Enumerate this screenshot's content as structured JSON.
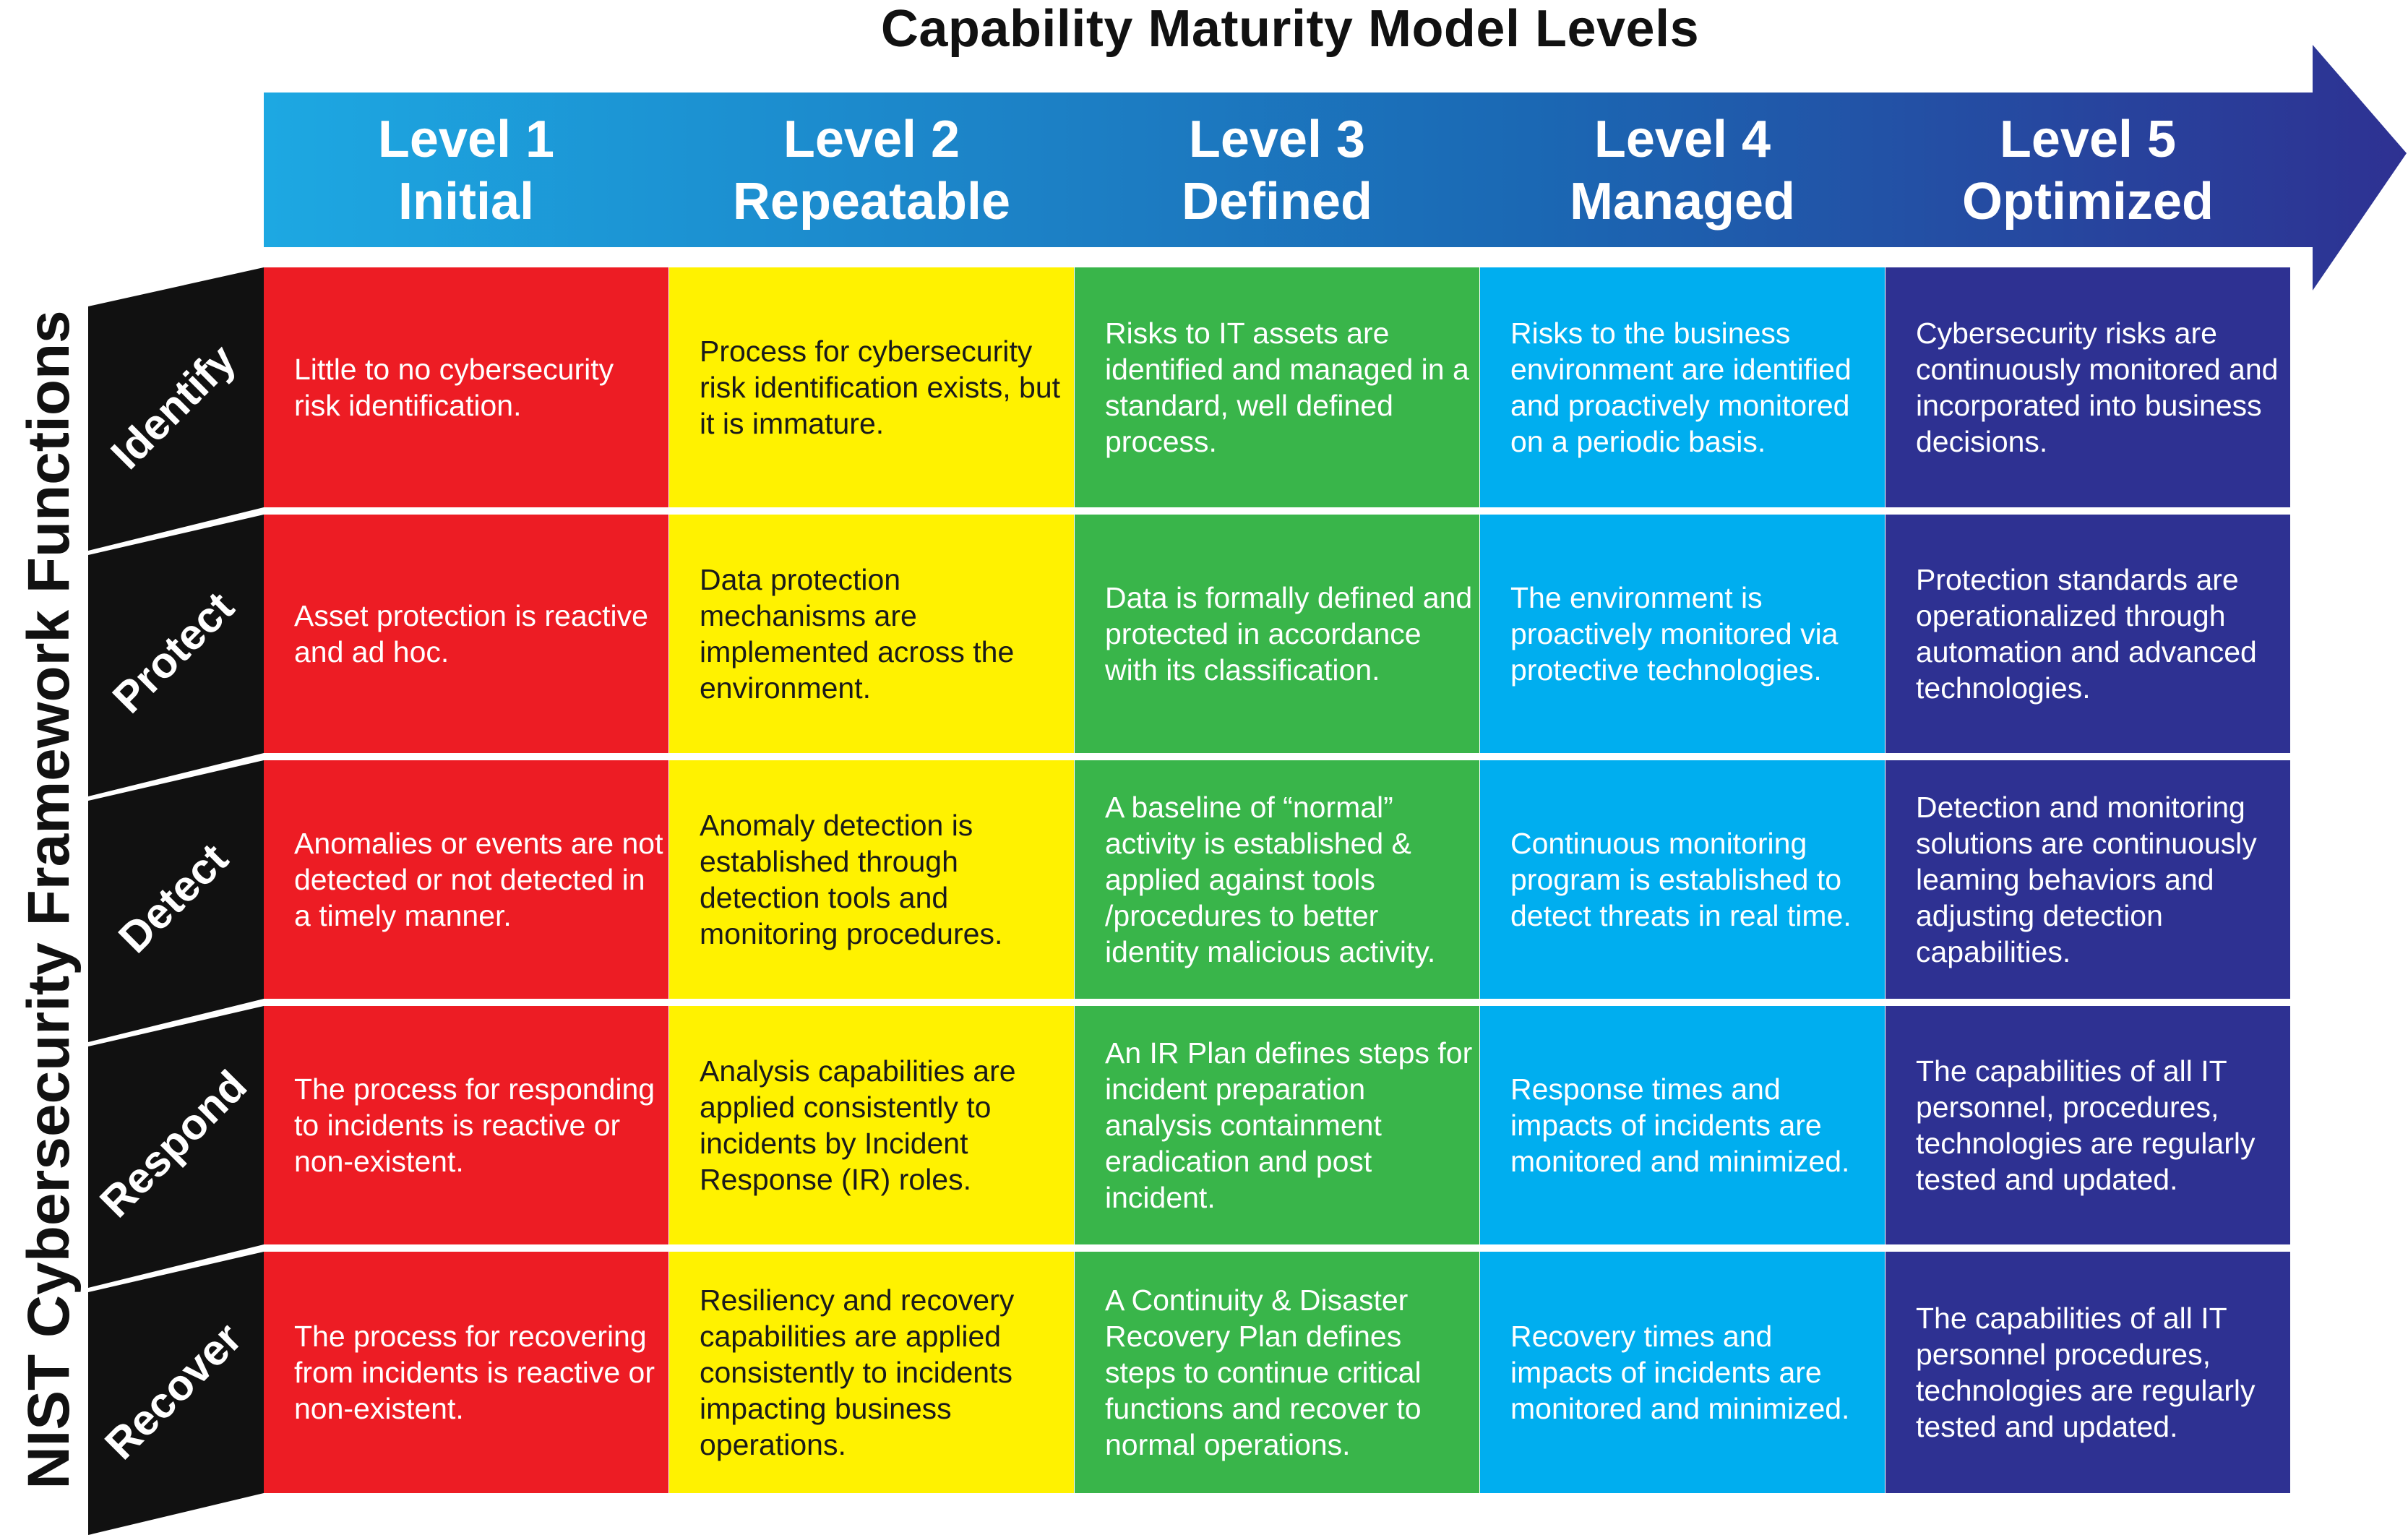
{
  "title": "Capability Maturity Model Levels",
  "side_title": "NIST Cybersecurity Framework Functions",
  "levels": [
    {
      "number": "Level 1",
      "name": "Initial",
      "color": "#ED1C24",
      "text_color": "#FFFFFF"
    },
    {
      "number": "Level 2",
      "name": "Repeatable",
      "color": "#FFF200",
      "text_color": "#1A1A1A"
    },
    {
      "number": "Level 3",
      "name": "Defined",
      "color": "#39B54A",
      "text_color": "#FFFFFF"
    },
    {
      "number": "Level 4",
      "name": "Managed",
      "color": "#00AEEF",
      "text_color": "#FFFFFF"
    },
    {
      "number": "Level 5",
      "name": "Optimized",
      "color": "#2E3192",
      "text_color": "#FFFFFF"
    }
  ],
  "arrow_gradient": [
    "#1DA8E2",
    "#1B67B3",
    "#2E3192"
  ],
  "functions": [
    {
      "name": "Identify",
      "cells": [
        "Little to no cybersecurity risk identification.",
        "Process for cybersecurity risk identification exists, but it is immature.",
        "Risks to IT assets are identified and managed in a standard, well defined process.",
        "Risks to the business environment are identified and proactively monitored on a periodic basis.",
        "Cybersecurity risks are continuously monitored and incorporated into business decisions."
      ]
    },
    {
      "name": "Protect",
      "cells": [
        "Asset protection is reactive and ad hoc.",
        "Data protection mechanisms are implemented across the environment.",
        "Data is formally defined and protected in accordance with its classification.",
        "The environment is proactively monitored via protective technologies.",
        "Protection standards are operationalized through automation and advanced technologies."
      ]
    },
    {
      "name": "Detect",
      "cells": [
        "Anomalies or events are not detected or not detected in a timely manner.",
        "Anomaly detection is established through detection tools and monitoring procedures.",
        "A baseline of “normal” activity is established & applied against tools /procedures to better identity malicious activity.",
        "Continuous monitoring program is established to detect threats in real time.",
        "Detection and monitoring solutions are continuously leaming behaviors and adjusting detection capabilities."
      ]
    },
    {
      "name": "Respond",
      "cells": [
        "The process for responding to incidents is reactive or non-existent.",
        "Analysis capabilities are applied consistently to incidents by Incident Response (IR) roles.",
        "An IR Plan defines steps for incident preparation analysis containment eradication and post incident.",
        "Response times and impacts of incidents are monitored and minimized.",
        "The capabilities of all IT personnel, procedures, technologies are regularly tested and updated."
      ]
    },
    {
      "name": "Recover",
      "cells": [
        "The process for recovering from incidents is reactive or non-existent.",
        "Resiliency and recovery capabilities are applied consistently to incidents impacting business operations.",
        "A Continuity & Disaster Recovery Plan defines steps to continue critical functions and recover to normal operations.",
        "Recovery times and impacts of incidents are monitored and minimized.",
        "The capabilities of all IT personnel procedures, technologies are regularly tested and updated."
      ]
    }
  ]
}
